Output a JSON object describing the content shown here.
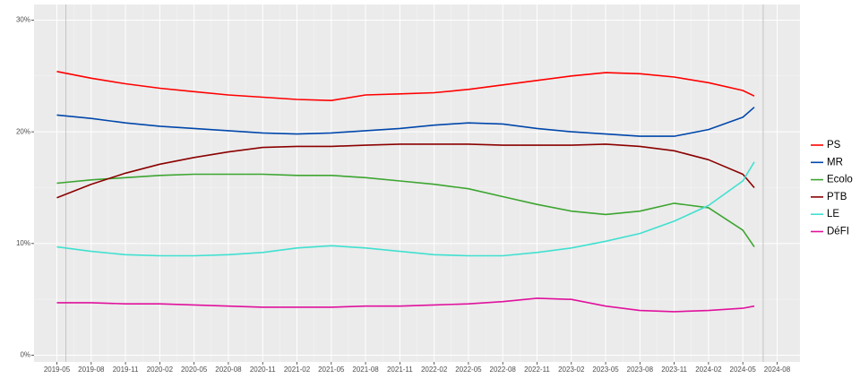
{
  "chart_data": {
    "type": "line",
    "x": [
      "2019-05",
      "2019-08",
      "2019-11",
      "2020-02",
      "2020-05",
      "2020-08",
      "2020-11",
      "2021-02",
      "2021-05",
      "2021-08",
      "2021-11",
      "2022-02",
      "2022-05",
      "2022-08",
      "2022-11",
      "2023-02",
      "2023-05",
      "2023-08",
      "2023-11",
      "2024-02",
      "2024-05",
      "2024-06"
    ],
    "series": [
      {
        "name": "PS",
        "color": "#ff0000",
        "values": [
          25.4,
          24.8,
          24.3,
          23.9,
          23.6,
          23.3,
          23.1,
          22.9,
          22.8,
          23.3,
          23.4,
          23.5,
          23.8,
          24.2,
          24.6,
          25.0,
          25.3,
          25.2,
          24.9,
          24.4,
          23.7,
          23.2
        ]
      },
      {
        "name": "MR",
        "color": "#0047ab",
        "values": [
          21.5,
          21.2,
          20.8,
          20.5,
          20.3,
          20.1,
          19.9,
          19.8,
          19.9,
          20.1,
          20.3,
          20.6,
          20.8,
          20.7,
          20.3,
          20.0,
          19.8,
          19.6,
          19.6,
          20.2,
          21.3,
          22.2
        ]
      },
      {
        "name": "Ecolo",
        "color": "#3ca530",
        "values": [
          15.4,
          15.7,
          15.9,
          16.1,
          16.2,
          16.2,
          16.2,
          16.1,
          16.1,
          15.9,
          15.6,
          15.3,
          14.9,
          14.2,
          13.5,
          12.9,
          12.6,
          12.9,
          13.6,
          13.2,
          11.2,
          9.7
        ]
      },
      {
        "name": "PTB",
        "color": "#8b0000",
        "values": [
          14.1,
          15.3,
          16.3,
          17.1,
          17.7,
          18.2,
          18.6,
          18.7,
          18.7,
          18.8,
          18.9,
          18.9,
          18.9,
          18.8,
          18.8,
          18.8,
          18.9,
          18.7,
          18.3,
          17.5,
          16.2,
          15.0
        ]
      },
      {
        "name": "LE",
        "color": "#40e0d0",
        "values": [
          9.7,
          9.3,
          9.0,
          8.9,
          8.9,
          9.0,
          9.2,
          9.6,
          9.8,
          9.6,
          9.3,
          9.0,
          8.9,
          8.9,
          9.2,
          9.6,
          10.2,
          10.9,
          12.0,
          13.4,
          15.6,
          17.3
        ]
      },
      {
        "name": "DéFI",
        "color": "#e0119d",
        "values": [
          4.7,
          4.7,
          4.6,
          4.6,
          4.5,
          4.4,
          4.3,
          4.3,
          4.3,
          4.4,
          4.4,
          4.5,
          4.6,
          4.8,
          5.1,
          5.0,
          4.4,
          4.0,
          3.9,
          4.0,
          4.2,
          4.4
        ]
      }
    ],
    "xlim": [
      "2019-03",
      "2024-10"
    ],
    "xticks": [
      "2019-05",
      "2019-08",
      "2019-11",
      "2020-02",
      "2020-05",
      "2020-08",
      "2020-11",
      "2021-02",
      "2021-05",
      "2021-08",
      "2021-11",
      "2022-02",
      "2022-05",
      "2022-08",
      "2022-11",
      "2023-02",
      "2023-05",
      "2023-08",
      "2023-11",
      "2024-02",
      "2024-05",
      "2024-08"
    ],
    "ylim": [
      -0.6,
      31.4
    ],
    "yticks": [
      {
        "value": 0,
        "label": "0%"
      },
      {
        "value": 10,
        "label": "10%"
      },
      {
        "value": 20,
        "label": "20%"
      },
      {
        "value": 30,
        "label": "30%"
      }
    ],
    "grid": true,
    "legend": "right"
  }
}
